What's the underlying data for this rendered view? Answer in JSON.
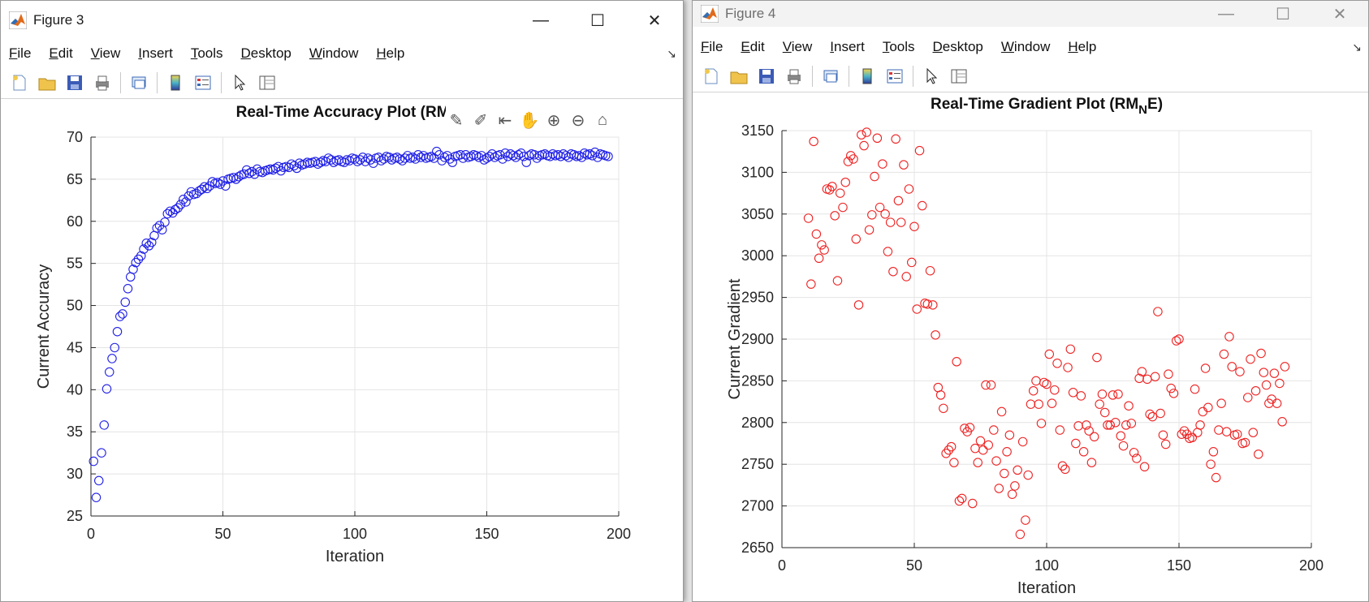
{
  "fig3": {
    "title": "Figure 3",
    "menu": [
      "File",
      "Edit",
      "View",
      "Insert",
      "Tools",
      "Desktop",
      "Window",
      "Help"
    ],
    "plot_title": "Real-Time Accuracy Plot (RMNE)"
  },
  "fig4": {
    "title": "Figure 4",
    "menu": [
      "File",
      "Edit",
      "View",
      "Insert",
      "Tools",
      "Desktop",
      "Window",
      "Help"
    ]
  },
  "colors": {
    "accuracy": "#1f1fe6",
    "gradient": "#ee2222"
  },
  "chart_data": [
    {
      "type": "scatter",
      "title": "Real-Time Accuracy Plot (RMNE)",
      "xlabel": "Iteration",
      "ylabel": "Current Accuracy",
      "xlim": [
        0,
        200
      ],
      "ylim": [
        25,
        70
      ],
      "xticks": [
        0,
        50,
        100,
        150,
        200
      ],
      "yticks": [
        25,
        30,
        35,
        40,
        45,
        50,
        55,
        60,
        65,
        70
      ],
      "grid": true,
      "marker": "circle",
      "color": "blue",
      "y": [
        31.5,
        27.2,
        29.2,
        32.5,
        35.8,
        40.1,
        42.1,
        43.7,
        45.0,
        46.9,
        48.7,
        49.0,
        50.4,
        52.0,
        53.4,
        54.3,
        55.1,
        55.5,
        55.9,
        56.7,
        57.4,
        57.1,
        57.5,
        58.3,
        59.2,
        59.5,
        59.0,
        59.9,
        60.9,
        61.2,
        61.0,
        61.4,
        61.6,
        62.0,
        62.6,
        62.3,
        63.0,
        63.5,
        63.2,
        63.3,
        63.6,
        63.8,
        64.1,
        63.9,
        64.2,
        64.7,
        64.5,
        64.6,
        64.4,
        64.8,
        64.2,
        65.0,
        65.1,
        65.2,
        65.0,
        65.3,
        65.5,
        65.6,
        66.1,
        65.7,
        65.9,
        65.6,
        66.2,
        65.9,
        65.8,
        66.0,
        66.1,
        66.2,
        66.1,
        66.3,
        66.5,
        66.0,
        66.4,
        66.5,
        66.4,
        66.8,
        66.6,
        66.3,
        66.9,
        66.7,
        66.8,
        67.0,
        66.9,
        67.0,
        67.1,
        66.8,
        67.0,
        67.2,
        67.1,
        67.5,
        67.3,
        67.0,
        67.2,
        67.3,
        67.1,
        67.0,
        67.3,
        67.2,
        67.5,
        67.4,
        67.1,
        67.3,
        67.6,
        67.1,
        67.5,
        67.3,
        66.9,
        67.5,
        67.6,
        67.2,
        67.4,
        67.7,
        67.6,
        67.3,
        67.5,
        67.6,
        67.4,
        67.2,
        67.5,
        67.8,
        67.5,
        67.6,
        67.4,
        67.9,
        67.6,
        67.8,
        67.5,
        67.6,
        67.7,
        67.5,
        68.3,
        67.9,
        67.2,
        67.6,
        67.8,
        67.4,
        67.0,
        67.7,
        67.8,
        67.9,
        67.5,
        67.9,
        67.6,
        67.7,
        67.9,
        67.8,
        67.6,
        67.8,
        67.3,
        67.5,
        67.7,
        68.0,
        67.6,
        67.8,
        67.9,
        67.4,
        68.1,
        67.7,
        68.0,
        67.8,
        67.6,
        67.9,
        68.1,
        67.7,
        67.0,
        67.8,
        68.0,
        67.9,
        67.5,
        67.8,
        67.9,
        68.0,
        67.8,
        67.7,
        68.0,
        67.8,
        67.9,
        67.7,
        68.0,
        67.8,
        67.6,
        68.0,
        67.9,
        67.7,
        67.8,
        67.6,
        68.1,
        67.9,
        68.0,
        67.8,
        68.2,
        67.6,
        68.0,
        67.9,
        67.8,
        67.7
      ]
    },
    {
      "type": "scatter",
      "title": "Real-Time Gradient Plot (RMNE)",
      "xlabel": "Iteration",
      "ylabel": "Current Gradient",
      "xlim": [
        0,
        200
      ],
      "ylim": [
        2650,
        3150
      ],
      "xticks": [
        0,
        50,
        100,
        150,
        200
      ],
      "yticks": [
        2650,
        2700,
        2750,
        2800,
        2850,
        2900,
        2950,
        3000,
        3050,
        3100,
        3150
      ],
      "grid": true,
      "marker": "circle",
      "color": "red",
      "points": [
        [
          10,
          3045
        ],
        [
          11,
          2966
        ],
        [
          12,
          3137
        ],
        [
          13,
          3026
        ],
        [
          14,
          2997
        ],
        [
          15,
          3013
        ],
        [
          16,
          3007
        ],
        [
          17,
          3080
        ],
        [
          18,
          3079
        ],
        [
          19,
          3083
        ],
        [
          20,
          3048
        ],
        [
          21,
          2970
        ],
        [
          22,
          3075
        ],
        [
          23,
          3058
        ],
        [
          24,
          3088
        ],
        [
          25,
          3113
        ],
        [
          26,
          3120
        ],
        [
          27,
          3116
        ],
        [
          28,
          3020
        ],
        [
          29,
          2941
        ],
        [
          30,
          3145
        ],
        [
          31,
          3132
        ],
        [
          32,
          3148
        ],
        [
          33,
          3031
        ],
        [
          34,
          3049
        ],
        [
          35,
          3095
        ],
        [
          36,
          3141
        ],
        [
          37,
          3058
        ],
        [
          38,
          3110
        ],
        [
          39,
          3050
        ],
        [
          40,
          3005
        ],
        [
          41,
          3040
        ],
        [
          42,
          2981
        ],
        [
          43,
          3140
        ],
        [
          44,
          3066
        ],
        [
          45,
          3040
        ],
        [
          46,
          3109
        ],
        [
          47,
          2975
        ],
        [
          48,
          3080
        ],
        [
          49,
          2992
        ],
        [
          50,
          3035
        ],
        [
          51,
          2936
        ],
        [
          52,
          3126
        ],
        [
          53,
          3060
        ],
        [
          54,
          2943
        ],
        [
          55,
          2942
        ],
        [
          56,
          2982
        ],
        [
          57,
          2941
        ],
        [
          58,
          2905
        ],
        [
          59,
          2842
        ],
        [
          60,
          2833
        ],
        [
          61,
          2817
        ],
        [
          62,
          2763
        ],
        [
          63,
          2767
        ],
        [
          64,
          2771
        ],
        [
          65,
          2752
        ],
        [
          66,
          2873
        ],
        [
          67,
          2706
        ],
        [
          68,
          2709
        ],
        [
          69,
          2793
        ],
        [
          70,
          2789
        ],
        [
          71,
          2794
        ],
        [
          72,
          2703
        ],
        [
          73,
          2769
        ],
        [
          74,
          2752
        ],
        [
          75,
          2778
        ],
        [
          76,
          2767
        ],
        [
          77,
          2845
        ],
        [
          78,
          2773
        ],
        [
          79,
          2845
        ],
        [
          80,
          2791
        ],
        [
          81,
          2754
        ],
        [
          82,
          2721
        ],
        [
          83,
          2813
        ],
        [
          84,
          2739
        ],
        [
          85,
          2765
        ],
        [
          86,
          2785
        ],
        [
          87,
          2714
        ],
        [
          88,
          2724
        ],
        [
          89,
          2743
        ],
        [
          90,
          2666
        ],
        [
          91,
          2777
        ],
        [
          92,
          2683
        ],
        [
          93,
          2737
        ],
        [
          94,
          2822
        ],
        [
          95,
          2838
        ],
        [
          96,
          2850
        ],
        [
          97,
          2822
        ],
        [
          98,
          2799
        ],
        [
          99,
          2848
        ],
        [
          100,
          2846
        ],
        [
          101,
          2882
        ],
        [
          102,
          2823
        ],
        [
          103,
          2839
        ],
        [
          104,
          2871
        ],
        [
          105,
          2791
        ],
        [
          106,
          2748
        ],
        [
          107,
          2744
        ],
        [
          108,
          2866
        ],
        [
          109,
          2888
        ],
        [
          110,
          2836
        ],
        [
          111,
          2775
        ],
        [
          112,
          2796
        ],
        [
          113,
          2832
        ],
        [
          114,
          2765
        ],
        [
          115,
          2797
        ],
        [
          116,
          2790
        ],
        [
          117,
          2752
        ],
        [
          118,
          2783
        ],
        [
          119,
          2878
        ],
        [
          120,
          2822
        ],
        [
          121,
          2834
        ],
        [
          122,
          2812
        ],
        [
          123,
          2797
        ],
        [
          124,
          2797
        ],
        [
          125,
          2833
        ],
        [
          126,
          2800
        ],
        [
          127,
          2834
        ],
        [
          128,
          2784
        ],
        [
          129,
          2772
        ],
        [
          130,
          2797
        ],
        [
          131,
          2820
        ],
        [
          132,
          2799
        ],
        [
          133,
          2764
        ],
        [
          134,
          2757
        ],
        [
          135,
          2853
        ],
        [
          136,
          2861
        ],
        [
          137,
          2747
        ],
        [
          138,
          2852
        ],
        [
          139,
          2810
        ],
        [
          140,
          2807
        ],
        [
          141,
          2855
        ],
        [
          142,
          2933
        ],
        [
          143,
          2811
        ],
        [
          144,
          2785
        ],
        [
          145,
          2774
        ],
        [
          146,
          2858
        ],
        [
          147,
          2841
        ],
        [
          148,
          2835
        ],
        [
          149,
          2898
        ],
        [
          150,
          2900
        ],
        [
          151,
          2786
        ],
        [
          152,
          2790
        ],
        [
          153,
          2786
        ],
        [
          154,
          2781
        ],
        [
          155,
          2782
        ],
        [
          156,
          2840
        ],
        [
          157,
          2788
        ],
        [
          158,
          2797
        ],
        [
          159,
          2813
        ],
        [
          160,
          2865
        ],
        [
          161,
          2818
        ],
        [
          162,
          2750
        ],
        [
          163,
          2765
        ],
        [
          164,
          2734
        ],
        [
          165,
          2791
        ],
        [
          166,
          2823
        ],
        [
          167,
          2882
        ],
        [
          168,
          2789
        ],
        [
          169,
          2903
        ],
        [
          170,
          2867
        ],
        [
          171,
          2785
        ],
        [
          172,
          2786
        ],
        [
          173,
          2861
        ],
        [
          174,
          2775
        ],
        [
          175,
          2776
        ],
        [
          176,
          2830
        ],
        [
          177,
          2876
        ],
        [
          178,
          2788
        ],
        [
          179,
          2838
        ],
        [
          180,
          2762
        ],
        [
          181,
          2883
        ],
        [
          182,
          2860
        ],
        [
          183,
          2845
        ],
        [
          184,
          2823
        ],
        [
          185,
          2828
        ],
        [
          186,
          2859
        ],
        [
          187,
          2823
        ],
        [
          188,
          2847
        ],
        [
          189,
          2801
        ],
        [
          190,
          2867
        ]
      ]
    }
  ]
}
